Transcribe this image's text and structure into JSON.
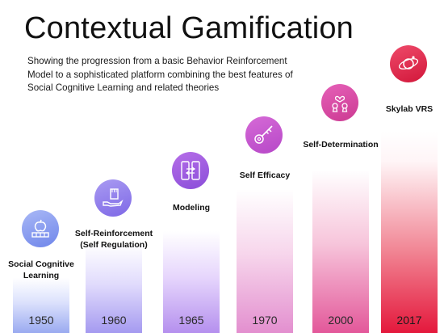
{
  "title": "Contextual Gamification",
  "subtitle": "Showing the progression from a basic Behavior Reinforcement Model to a sophisticated platform combining the best features of Social Cognitive Learning and related theories",
  "stages": [
    {
      "label": "Social Cognitive Learning",
      "year": "1950",
      "icon": "apple-bar-icon",
      "color": "#9aaaf0"
    },
    {
      "label": "Self-Reinforcement (Self Regulation)",
      "year": "1960",
      "icon": "hand-card-icon",
      "color": "#a59af0"
    },
    {
      "label": "Modeling",
      "year": "1965",
      "icon": "swap-devices-icon",
      "color": "#b590ee"
    },
    {
      "label": "Self Efficacy",
      "year": "1970",
      "icon": "key-icon",
      "color": "#e38fcf"
    },
    {
      "label": "Self-Determination",
      "year": "2000",
      "icon": "heart-keyholes-icon",
      "color": "#e3589a"
    },
    {
      "label": "Skylab VRS",
      "year": "2017",
      "icon": "orbit-icon",
      "color": "#e4183c"
    }
  ]
}
